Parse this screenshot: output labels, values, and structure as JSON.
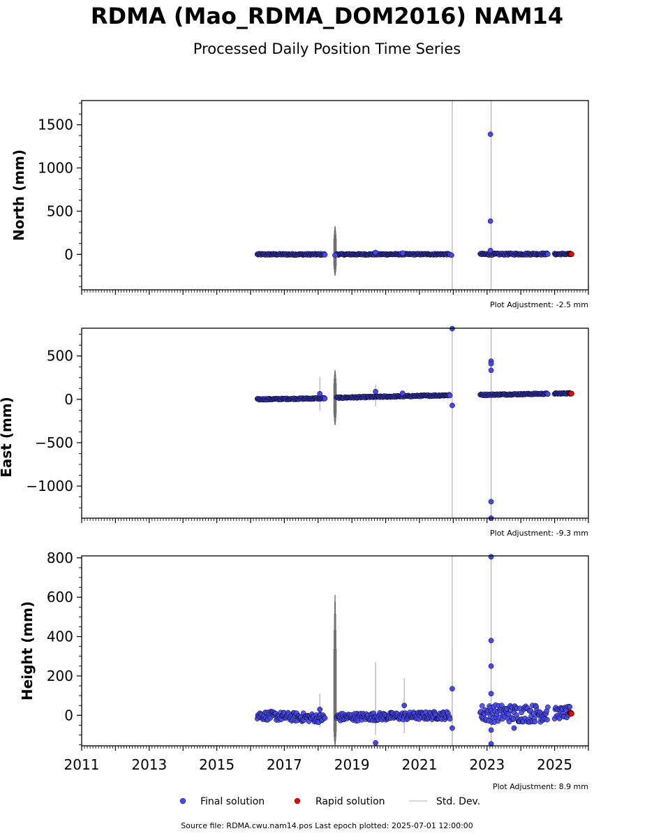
{
  "title": "RDMA (Mao_RDMA_DOM2016) NAM14",
  "subtitle": "Processed Daily Position Time Series",
  "source_text": "Source file: RDMA.cwu.nam14.pos  Last epoch plotted: 2025-07-01 12:00:00",
  "legend": [
    {
      "label": "Final solution",
      "color": "#4747f0",
      "kind": "dot"
    },
    {
      "label": "Rapid solution",
      "color": "#e60000",
      "kind": "dot"
    },
    {
      "label": "Std. Dev.",
      "color": "#c8c8c8",
      "kind": "line"
    }
  ],
  "chart_data": [
    {
      "type": "scatter",
      "ylabel": "North (mm)",
      "adjustment": "Plot Adjustment: -2.5 mm",
      "xlim": [
        2011.0,
        2026.0
      ],
      "ylim": [
        -410,
        1780
      ],
      "yticks": [
        0,
        500,
        1000,
        1500
      ],
      "ytick_labels": [
        "0",
        "500",
        "1000",
        "1500"
      ],
      "segments": [
        {
          "x0": 2016.2,
          "x1": 2018.2,
          "y0": 0,
          "y1": 0,
          "spread": 8
        },
        {
          "x0": 2018.55,
          "x1": 2021.9,
          "y0": 0,
          "y1": 2,
          "spread": 7
        },
        {
          "x0": 2022.8,
          "x1": 2024.8,
          "y0": 2,
          "y1": 5,
          "spread": 10
        },
        {
          "x0": 2025.0,
          "x1": 2025.45,
          "y0": 3,
          "y1": 5,
          "spread": 8
        }
      ],
      "outliers": [
        [
          2023.1,
          1390
        ],
        [
          2023.1,
          385
        ],
        [
          2023.1,
          45
        ],
        [
          2019.7,
          22
        ],
        [
          2020.5,
          15
        ],
        [
          2021.95,
          -10
        ],
        [
          2018.5,
          -10
        ]
      ],
      "rapid": {
        "x0": 2025.45,
        "x1": 2025.5,
        "y": 2
      },
      "errorbars": [
        [
          2018.5,
          -250,
          330
        ],
        [
          2021.97,
          -410,
          1780
        ],
        [
          2023.12,
          -410,
          1780
        ]
      ]
    },
    {
      "type": "scatter",
      "ylabel": "East (mm)",
      "adjustment": "Plot Adjustment: -9.3 mm",
      "xlim": [
        2011.0,
        2026.0
      ],
      "ylim": [
        -1370,
        820
      ],
      "yticks": [
        -1000,
        -500,
        0,
        500
      ],
      "ytick_labels": [
        "−1000",
        "−500",
        "0",
        "500"
      ],
      "segments": [
        {
          "x0": 2016.2,
          "x1": 2018.2,
          "y0": 0,
          "y1": 12,
          "spread": 7
        },
        {
          "x0": 2018.55,
          "x1": 2021.9,
          "y0": 18,
          "y1": 48,
          "spread": 7
        },
        {
          "x0": 2022.8,
          "x1": 2024.8,
          "y0": 52,
          "y1": 65,
          "spread": 7
        },
        {
          "x0": 2025.0,
          "x1": 2025.45,
          "y0": 66,
          "y1": 70,
          "spread": 6
        }
      ],
      "outliers": [
        [
          2021.97,
          815
        ],
        [
          2023.12,
          440
        ],
        [
          2023.12,
          410
        ],
        [
          2023.12,
          335
        ],
        [
          2023.12,
          -1180
        ],
        [
          2023.12,
          -1370
        ],
        [
          2021.97,
          -70
        ],
        [
          2019.7,
          90
        ],
        [
          2018.05,
          65
        ],
        [
          2020.5,
          70
        ]
      ],
      "rapid": {
        "x0": 2025.45,
        "x1": 2025.5,
        "y": 70
      },
      "errorbars": [
        [
          2018.5,
          -300,
          340
        ],
        [
          2018.05,
          -130,
          260
        ],
        [
          2021.97,
          -1370,
          820
        ],
        [
          2023.12,
          -1370,
          820
        ],
        [
          2019.7,
          -80,
          170
        ]
      ]
    },
    {
      "type": "scatter",
      "ylabel": "Height (mm)",
      "adjustment": "Plot Adjustment: 8.9 mm",
      "xlim": [
        2011.0,
        2026.0
      ],
      "ylim": [
        -155,
        810
      ],
      "yticks": [
        0,
        200,
        400,
        600,
        800
      ],
      "ytick_labels": [
        "0",
        "200",
        "400",
        "600",
        "800"
      ],
      "xticks": [
        2011,
        2013,
        2015,
        2017,
        2019,
        2021,
        2023,
        2025
      ],
      "xtick_labels": [
        "2011",
        "2013",
        "2015",
        "2017",
        "2019",
        "2021",
        "2023",
        "2025"
      ],
      "segments": [
        {
          "x0": 2016.2,
          "x1": 2018.2,
          "y0": 0,
          "y1": -15,
          "spread": 22
        },
        {
          "x0": 2018.55,
          "x1": 2021.9,
          "y0": -10,
          "y1": 0,
          "spread": 20
        },
        {
          "x0": 2022.8,
          "x1": 2024.8,
          "y0": 10,
          "y1": 10,
          "spread": 45
        },
        {
          "x0": 2025.0,
          "x1": 2025.45,
          "y0": 10,
          "y1": 15,
          "spread": 30
        }
      ],
      "outliers": [
        [
          2023.12,
          805
        ],
        [
          2023.12,
          380
        ],
        [
          2023.12,
          250
        ],
        [
          2023.12,
          110
        ],
        [
          2021.97,
          135
        ],
        [
          2021.97,
          -65
        ],
        [
          2023.12,
          -75
        ],
        [
          2023.12,
          -145
        ],
        [
          2019.7,
          -140
        ],
        [
          2020.55,
          50
        ],
        [
          2018.05,
          30
        ],
        [
          2023.8,
          -65
        ]
      ],
      "rapid": {
        "x0": 2025.45,
        "x1": 2025.5,
        "y": 10
      },
      "errorbars": [
        [
          2018.5,
          -155,
          615
        ],
        [
          2021.97,
          -155,
          810
        ],
        [
          2023.12,
          -155,
          810
        ],
        [
          2019.7,
          -100,
          270
        ],
        [
          2020.55,
          -90,
          190
        ],
        [
          2018.05,
          -60,
          110
        ],
        [
          2021.97,
          -155,
          340
        ]
      ]
    }
  ]
}
